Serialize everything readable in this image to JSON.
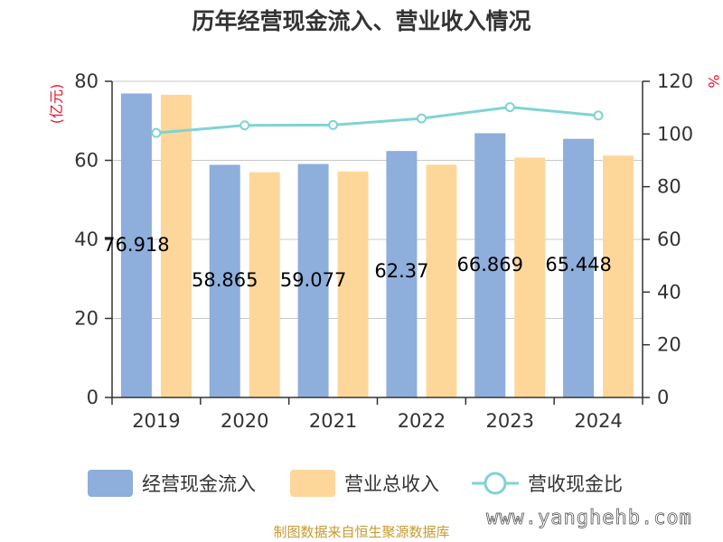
{
  "chart_data": {
    "type": "bar",
    "title": "历年经营现金流入、营业收入情况",
    "left_unit": "(亿元)",
    "right_unit": "%",
    "categories": [
      "2019",
      "2020",
      "2021",
      "2022",
      "2023",
      "2024"
    ],
    "left_axis": {
      "ylim": [
        0,
        80
      ],
      "ticks": [
        0,
        20,
        40,
        60,
        80
      ]
    },
    "right_axis": {
      "ylim": [
        0,
        120
      ],
      "ticks": [
        0,
        20,
        40,
        60,
        80,
        100,
        120
      ]
    },
    "grid": true,
    "legend_position": "bottom",
    "series": [
      {
        "name": "经营现金流入",
        "type": "bar",
        "axis": "left",
        "color": "#8eaedc",
        "values": [
          76.918,
          58.865,
          59.077,
          62.37,
          66.869,
          65.448
        ],
        "labels": [
          "76.918",
          "58.865",
          "59.077",
          "62.37",
          "66.869",
          "65.448"
        ]
      },
      {
        "name": "营业总收入",
        "type": "bar",
        "axis": "left",
        "color": "#fdd79a",
        "values": [
          76.6,
          57.0,
          57.2,
          58.9,
          60.7,
          61.2
        ]
      },
      {
        "name": "营收现金比",
        "type": "line",
        "axis": "right",
        "color": "#7fd3d5",
        "values": [
          100.4,
          103.3,
          103.4,
          105.9,
          110.2,
          107.0
        ]
      }
    ]
  },
  "footer": {
    "source": "制图数据来自恒生聚源数据库",
    "watermark": "www.yanghehb.com"
  }
}
